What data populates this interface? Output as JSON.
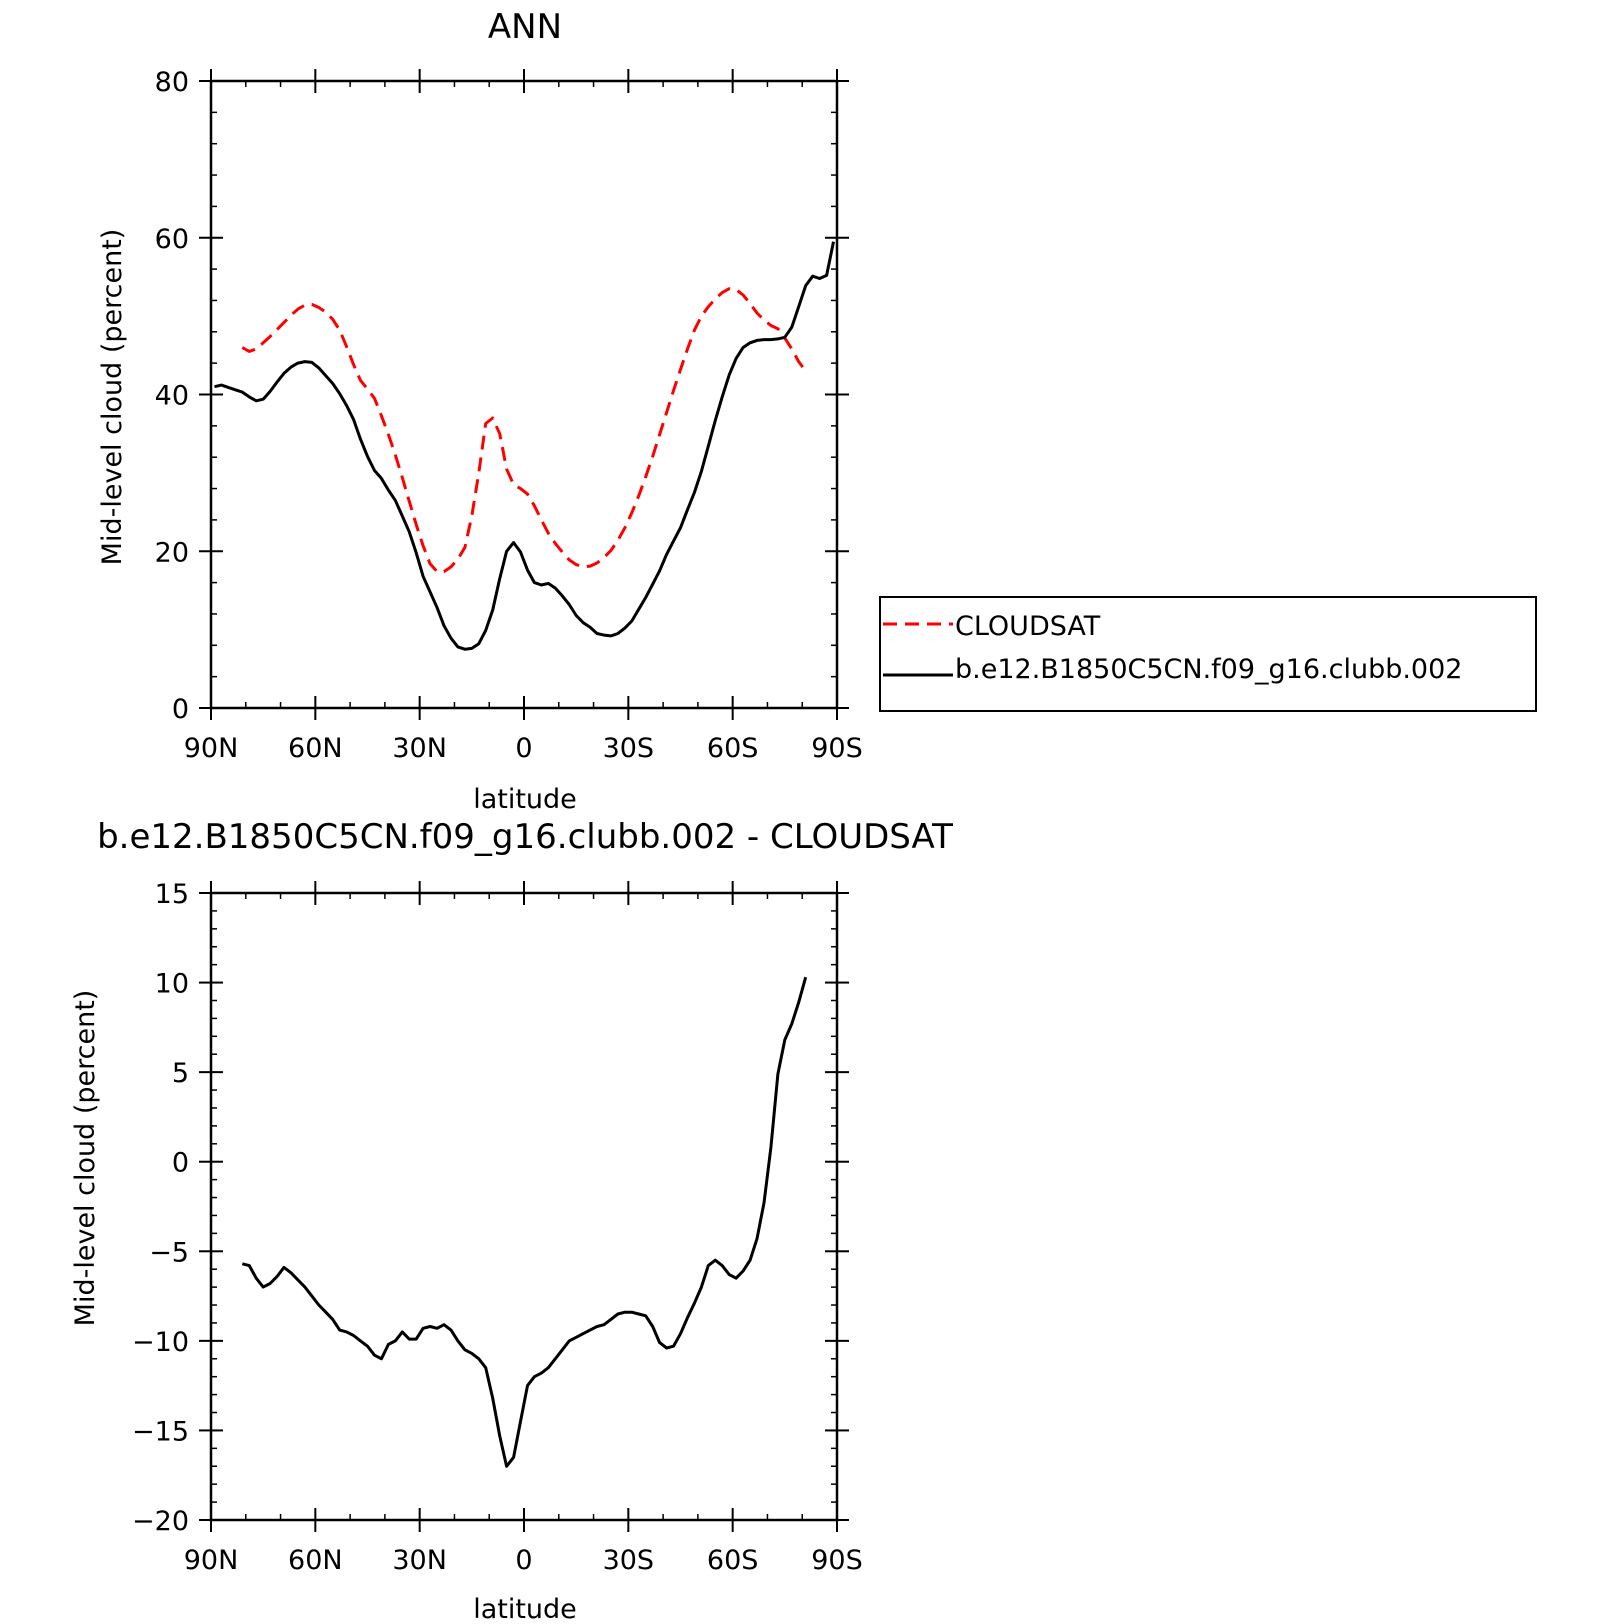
{
  "chart_data": [
    {
      "type": "line",
      "title": "ANN",
      "xlabel": "latitude",
      "ylabel": "Mid-level cloud (percent)",
      "xlim": [
        90,
        -90
      ],
      "ylim": [
        0,
        80
      ],
      "x_ticks": [
        90,
        60,
        30,
        0,
        -30,
        -60,
        -90
      ],
      "x_tick_labels": [
        "90N",
        "60N",
        "30N",
        "0",
        "30S",
        "60S",
        "90S"
      ],
      "y_ticks": [
        0,
        20,
        40,
        60,
        80
      ],
      "y_tick_labels": [
        "0",
        "20",
        "40",
        "60",
        "80"
      ],
      "legend_position": "right",
      "series": [
        {
          "name": "CLOUDSAT",
          "color": "#ff0000",
          "dash": "dashed",
          "x": [
            81,
            79,
            77,
            75,
            73,
            71,
            69,
            67,
            65,
            63,
            61,
            59,
            57,
            55,
            53,
            51,
            49,
            47,
            45,
            43,
            41,
            39,
            37,
            35,
            33,
            31,
            29,
            27,
            25,
            23,
            21,
            19,
            17,
            15,
            13,
            11,
            9,
            7,
            5,
            3,
            1,
            -1,
            -3,
            -5,
            -7,
            -9,
            -11,
            -13,
            -15,
            -17,
            -19,
            -21,
            -23,
            -25,
            -27,
            -29,
            -31,
            -33,
            -35,
            -37,
            -39,
            -41,
            -43,
            -45,
            -47,
            -49,
            -51,
            -53,
            -55,
            -57,
            -59,
            -61,
            -63,
            -65,
            -67,
            -69,
            -71,
            -73,
            -75,
            -77,
            -79,
            -81
          ],
          "y": [
            46,
            45.5,
            45.8,
            46.6,
            47.4,
            48.3,
            49.2,
            50.1,
            50.9,
            51.4,
            51.5,
            51.1,
            50.5,
            49.6,
            48.2,
            46.1,
            43.8,
            41.8,
            40.7,
            39.5,
            37.3,
            34.9,
            32.3,
            29.4,
            26.4,
            23.4,
            20.7,
            18.4,
            17.4,
            17.4,
            18,
            19,
            20.5,
            24.5,
            30,
            36.3,
            37,
            35,
            30.5,
            28.5,
            28,
            27.3,
            25.8,
            24,
            22.3,
            21,
            19.9,
            18.9,
            18.3,
            18,
            18.1,
            18.5,
            19.2,
            20.1,
            21.4,
            23,
            24.9,
            27.1,
            29.5,
            32.1,
            34.9,
            37.7,
            40.5,
            43.2,
            45.8,
            48.2,
            50,
            51.2,
            52.2,
            53,
            53.5,
            53.4,
            52.7,
            51.6,
            50.4,
            49.5,
            48.8,
            48.4,
            47.2,
            45.8,
            44.2,
            43
          ]
        },
        {
          "name": "b.e12.B1850C5CN.f09_g16.clubb.002",
          "color": "#000000",
          "dash": "solid",
          "x": [
            89,
            87,
            85,
            83,
            81,
            79,
            77,
            75,
            73,
            71,
            69,
            67,
            65,
            63,
            61,
            59,
            57,
            55,
            53,
            51,
            49,
            47,
            45,
            43,
            41,
            39,
            37,
            35,
            33,
            31,
            29,
            27,
            25,
            23,
            21,
            19,
            17,
            15,
            13,
            11,
            9,
            7,
            5,
            3,
            1,
            -1,
            -3,
            -5,
            -7,
            -9,
            -11,
            -13,
            -15,
            -17,
            -19,
            -21,
            -23,
            -25,
            -27,
            -29,
            -31,
            -33,
            -35,
            -37,
            -39,
            -41,
            -43,
            -45,
            -47,
            -49,
            -51,
            -53,
            -55,
            -57,
            -59,
            -61,
            -63,
            -65,
            -67,
            -69,
            -71,
            -73,
            -75,
            -77,
            -79,
            -81,
            -83,
            -85,
            -87,
            -89
          ],
          "y": [
            41,
            41.2,
            40.9,
            40.6,
            40.3,
            39.7,
            39.2,
            39.4,
            40.4,
            41.6,
            42.7,
            43.5,
            44,
            44.2,
            44.1,
            43.4,
            42.4,
            41.4,
            40.1,
            38.6,
            36.8,
            34.3,
            32.1,
            30.3,
            29.3,
            27.8,
            26.5,
            24.5,
            22.5,
            19.8,
            16.8,
            14.8,
            12.8,
            10.5,
            8.9,
            7.8,
            7.5,
            7.6,
            8.2,
            9.9,
            12.5,
            16.5,
            20,
            21.1,
            19.9,
            17.6,
            16,
            15.7,
            15.9,
            15.3,
            14.3,
            13.2,
            11.8,
            10.9,
            10.3,
            9.5,
            9.3,
            9.2,
            9.5,
            10.2,
            11.1,
            12.6,
            14.1,
            15.8,
            17.5,
            19.6,
            21.3,
            23,
            25.3,
            27.5,
            30.2,
            33.4,
            36.7,
            39.7,
            42.5,
            44.6,
            46,
            46.6,
            46.9,
            47,
            47,
            47.1,
            47.3,
            48.6,
            51.2,
            53.9,
            55.1,
            54.8,
            55.2,
            59.5
          ]
        }
      ]
    },
    {
      "type": "line",
      "title": "b.e12.B1850C5CN.f09_g16.clubb.002 - CLOUDSAT",
      "xlabel": "latitude",
      "ylabel": "Mid-level cloud (percent)",
      "xlim": [
        90,
        -90
      ],
      "ylim": [
        -20,
        15
      ],
      "x_ticks": [
        90,
        60,
        30,
        0,
        -30,
        -60,
        -90
      ],
      "x_tick_labels": [
        "90N",
        "60N",
        "30N",
        "0",
        "30S",
        "60S",
        "90S"
      ],
      "y_ticks": [
        -20,
        -15,
        -10,
        -5,
        0,
        5,
        10,
        15
      ],
      "y_tick_labels": [
        "−20",
        "−15",
        "−10",
        "−5",
        "0",
        "5",
        "10",
        "15"
      ],
      "series": [
        {
          "color": "#000000",
          "dash": "solid",
          "x": [
            81,
            79,
            77,
            75,
            73,
            71,
            69,
            67,
            65,
            63,
            61,
            59,
            57,
            55,
            53,
            51,
            49,
            47,
            45,
            43,
            41,
            39,
            37,
            35,
            33,
            31,
            29,
            27,
            25,
            23,
            21,
            19,
            17,
            15,
            13,
            11,
            9,
            7,
            5,
            3,
            1,
            -1,
            -3,
            -5,
            -7,
            -9,
            -11,
            -13,
            -15,
            -17,
            -19,
            -21,
            -23,
            -25,
            -27,
            -29,
            -31,
            -33,
            -35,
            -37,
            -39,
            -41,
            -43,
            -45,
            -47,
            -49,
            -51,
            -53,
            -55,
            -57,
            -59,
            -61,
            -63,
            -65,
            -67,
            -69,
            -71,
            -73,
            -75,
            -77,
            -79,
            -81
          ],
          "y": [
            -5.7,
            -5.8,
            -6.5,
            -7,
            -6.8,
            -6.4,
            -5.9,
            -6.2,
            -6.6,
            -7,
            -7.5,
            -8,
            -8.4,
            -8.8,
            -9.4,
            -9.5,
            -9.7,
            -10,
            -10.3,
            -10.8,
            -11,
            -10.2,
            -10,
            -9.5,
            -9.9,
            -9.9,
            -9.3,
            -9.2,
            -9.3,
            -9.1,
            -9.4,
            -10,
            -10.5,
            -10.7,
            -11,
            -11.5,
            -13.2,
            -15.3,
            -17,
            -16.5,
            -14.5,
            -12.5,
            -12,
            -11.8,
            -11.5,
            -11,
            -10.5,
            -10,
            -9.8,
            -9.6,
            -9.4,
            -9.2,
            -9.1,
            -8.8,
            -8.5,
            -8.4,
            -8.4,
            -8.5,
            -8.6,
            -9.2,
            -10.1,
            -10.4,
            -10.3,
            -9.6,
            -8.7,
            -7.9,
            -7,
            -5.8,
            -5.5,
            -5.8,
            -6.3,
            -6.5,
            -6.1,
            -5.5,
            -4.3,
            -2.3,
            0.8,
            4.9,
            6.8,
            7.7,
            8.9,
            10.3
          ]
        }
      ]
    }
  ]
}
